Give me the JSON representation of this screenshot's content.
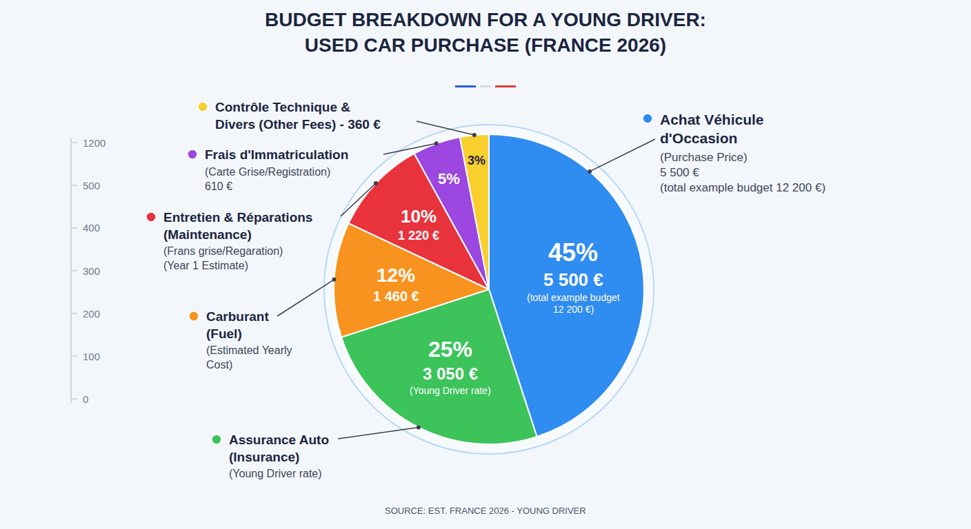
{
  "chart_data": {
    "type": "pie",
    "title": "BUDGET BREAKDOWN FOR A YOUNG DRIVER: USED CAR PURCHASE (FRANCE 2026)",
    "labels": [
      [
        "Achat Véhicule",
        "d'Occasion"
      ],
      [
        "Assurance Auto",
        "(Insurance)"
      ],
      [
        "Carburant",
        "(Fuel)"
      ],
      [
        "Entretien & Réparations",
        "(Maintenance)"
      ],
      [
        "Frais d'Immatriculation"
      ],
      [
        "Contrôle Technique &",
        "Divers (Other Fees) - 360 €"
      ]
    ],
    "label_notes": [
      [
        "(Purchase Price)",
        "5 500 €",
        "(total example budget 12 200 €)"
      ],
      [
        "(Young Driver rate)"
      ],
      [
        "(Estimated Yearly",
        "Cost)"
      ],
      [
        "(Frans grise/Regaration)",
        "(Year 1 Estimate)"
      ],
      [
        "(Carte Grise/Registration)",
        "610 €"
      ],
      null
    ],
    "values": [
      45,
      25,
      12,
      10,
      5,
      3
    ],
    "value_labels": [
      "45%",
      "25%",
      "12%",
      "10%",
      "5%",
      "3%"
    ],
    "amount_labels": [
      "5 500 €",
      "3 050 €",
      "1 460 €",
      "1 220 €",
      null,
      null
    ],
    "inner_notes": [
      "(total example budget 12 200 €)",
      "(Young Driver rate)",
      null,
      null,
      null,
      null
    ],
    "colors": [
      "#2f8cf0",
      "#3cc35a",
      "#f7931e",
      "#e8333d",
      "#9b47e0",
      "#f8cf2c"
    ],
    "data_labels": true,
    "side_scale_ticks": [
      1200,
      500,
      400,
      300,
      200,
      100,
      0
    ],
    "source": "SOURCE: EST. FRANCE 2026 - YOUNG DRIVER"
  }
}
